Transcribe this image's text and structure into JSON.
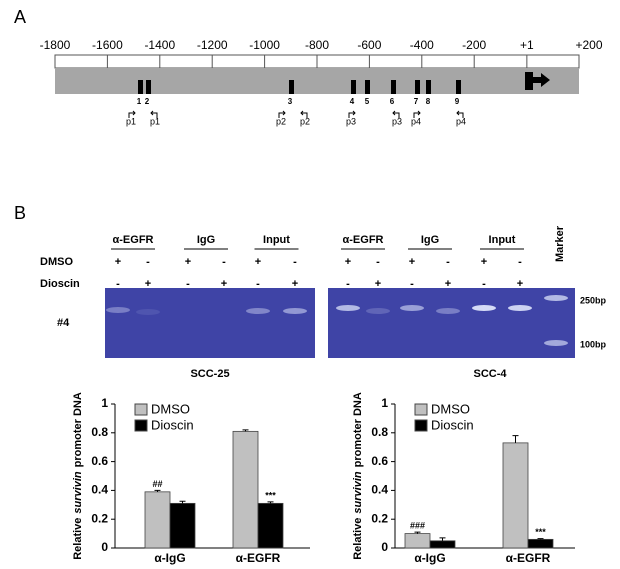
{
  "panel_a": {
    "label": "A",
    "ruler": [
      -1800,
      -1600,
      -1400,
      -1200,
      -1000,
      -800,
      -600,
      -400,
      -200,
      {
        "value": 1,
        "label": "+1"
      },
      {
        "value": 200,
        "label": "+200"
      }
    ],
    "sites": [
      "1",
      "2",
      "3",
      "4",
      "5",
      "6",
      "7",
      "8",
      "9"
    ],
    "primers": [
      "p1",
      "p1",
      "p2",
      "p2",
      "p3",
      "p3",
      "p4",
      "p4"
    ]
  },
  "panel_b": {
    "label": "B",
    "row_labels": [
      "DMSO",
      "Dioscin"
    ],
    "lane_label": "#4",
    "gels": [
      {
        "groups": [
          "α-EGFR",
          "IgG",
          "Input"
        ],
        "dmso": [
          "+",
          "-",
          "+",
          "-",
          "+",
          "-"
        ],
        "dioscin": [
          "-",
          "+",
          "-",
          "+",
          "-",
          "+"
        ]
      },
      {
        "groups": [
          "α-EGFR",
          "IgG",
          "Input"
        ],
        "dmso": [
          "+",
          "-",
          "+",
          "-",
          "+",
          "-"
        ],
        "dioscin": [
          "-",
          "+",
          "-",
          "+",
          "-",
          "+"
        ],
        "marker": "Marker"
      }
    ],
    "markers": [
      "250bp",
      "100bp"
    ]
  },
  "chart_data": [
    {
      "type": "bar",
      "title": "SCC-25",
      "ylabel": [
        "Relative",
        "survivin",
        "promoter DNA"
      ],
      "categories": [
        "α-IgG",
        "α-EGFR"
      ],
      "ylim": [
        0,
        1
      ],
      "yticks": [
        0,
        0.2,
        0.4,
        0.6,
        0.8,
        1
      ],
      "series": [
        {
          "name": "DMSO",
          "color": "#c0c0c0",
          "values": [
            0.39,
            0.81
          ],
          "errors": [
            0.01,
            0.01
          ],
          "annotations": [
            "##",
            null
          ]
        },
        {
          "name": "Dioscin",
          "color": "#000000",
          "values": [
            0.31,
            0.31
          ],
          "errors": [
            0.015,
            0.01
          ],
          "annotations": [
            null,
            "***"
          ]
        }
      ]
    },
    {
      "type": "bar",
      "title": "SCC-4",
      "ylabel": [
        "Relative",
        "survivin",
        "promoter DNA"
      ],
      "categories": [
        "α-IgG",
        "α-EGFR"
      ],
      "ylim": [
        0,
        1
      ],
      "yticks": [
        0,
        0.2,
        0.4,
        0.6,
        0.8,
        1
      ],
      "series": [
        {
          "name": "DMSO",
          "color": "#c0c0c0",
          "values": [
            0.1,
            0.73
          ],
          "errors": [
            0.01,
            0.05
          ],
          "annotations": [
            "###",
            null
          ]
        },
        {
          "name": "Dioscin",
          "color": "#000000",
          "values": [
            0.05,
            0.06
          ],
          "errors": [
            0.02,
            0.005
          ],
          "annotations": [
            null,
            "***"
          ]
        }
      ]
    }
  ]
}
